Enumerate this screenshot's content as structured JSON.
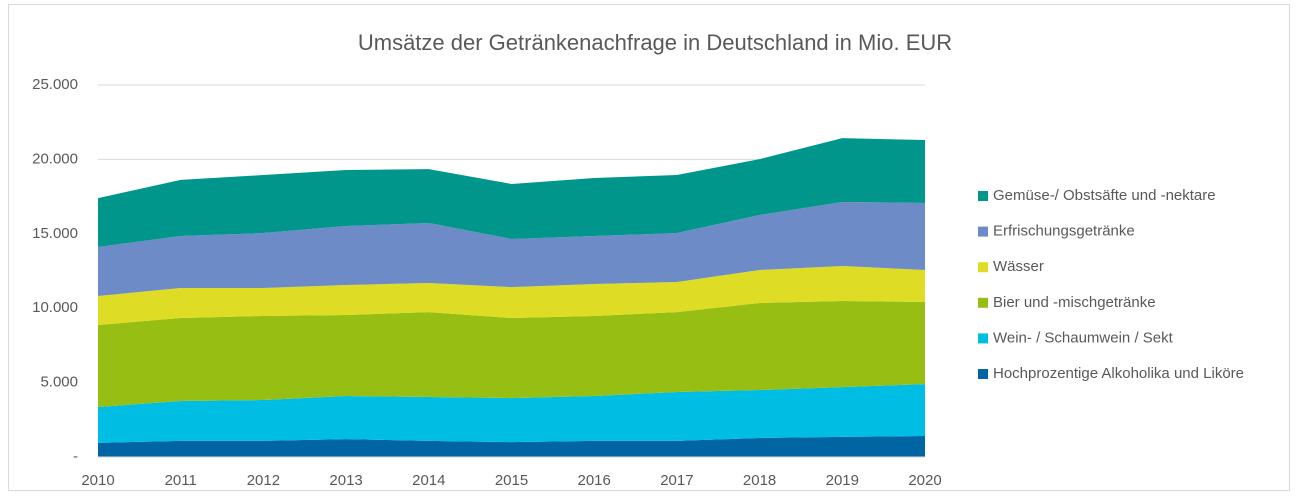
{
  "chart_data": {
    "type": "stacked_area",
    "title": "Umsätze der Getränkenachfrage in Deutschland in Mio. EUR",
    "categories": [
      "2010",
      "2011",
      "2012",
      "2013",
      "2014",
      "2015",
      "2016",
      "2017",
      "2018",
      "2019",
      "2020"
    ],
    "series": [
      {
        "name": "Hochprozentige Alkoholika und Liköre",
        "color": "#0065a2",
        "values": [
          950,
          1080,
          1080,
          1200,
          1080,
          1000,
          1080,
          1080,
          1280,
          1350,
          1410
        ]
      },
      {
        "name": "Wein- / Schaumwein / Sekt",
        "color": "#00bde3",
        "values": [
          2410,
          2680,
          2750,
          2900,
          2950,
          2960,
          3020,
          3290,
          3220,
          3350,
          3490
        ]
      },
      {
        "name": "Bier und -mischgetränke",
        "color": "#97bf13",
        "values": [
          5510,
          5580,
          5650,
          5440,
          5710,
          5380,
          5380,
          5370,
          5850,
          5780,
          5520
        ]
      },
      {
        "name": "Wässer",
        "color": "#dedc25",
        "values": [
          1950,
          2020,
          1880,
          2020,
          1950,
          2080,
          2150,
          2020,
          2220,
          2360,
          2150
        ]
      },
      {
        "name": "Erfrischungsgetränke",
        "color": "#6d8bc6",
        "values": [
          3290,
          3490,
          3690,
          3960,
          4040,
          3230,
          3220,
          3290,
          3690,
          4300,
          4500
        ]
      },
      {
        "name": "Gemüse-/ Obstsäfte und -nektare",
        "color": "#00968b",
        "values": [
          3290,
          3770,
          3900,
          3770,
          3620,
          3700,
          3900,
          3900,
          3760,
          4290,
          4230
        ]
      }
    ],
    "ylim": [
      0,
      25000
    ],
    "yticks": [
      {
        "value": 0,
        "label": "-"
      },
      {
        "value": 5000,
        "label": "5.000"
      },
      {
        "value": 10000,
        "label": "10.000"
      },
      {
        "value": 15000,
        "label": "15.000"
      },
      {
        "value": 20000,
        "label": "20.000"
      },
      {
        "value": 25000,
        "label": "25.000"
      }
    ],
    "grid": true,
    "legend": "right"
  }
}
